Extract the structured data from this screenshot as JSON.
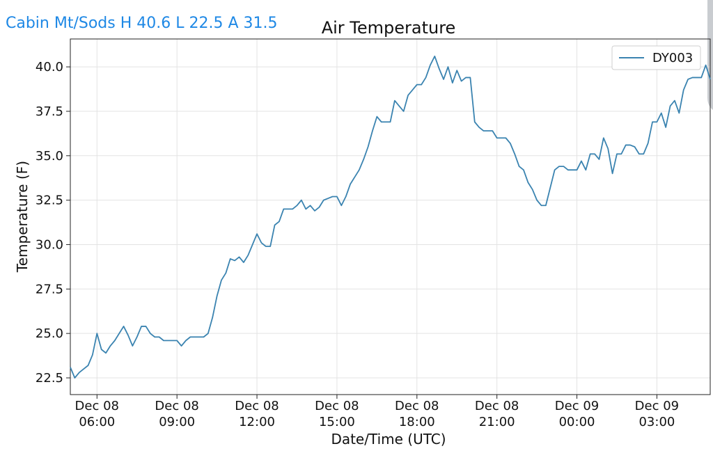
{
  "header": {
    "station": "Cabin Mt/Sods H 40.6 L 22.5 A 31.5"
  },
  "chart_data": {
    "type": "line",
    "title": "Air Temperature",
    "x_label": "Date/Time (UTC)",
    "y_label": "Temperature (F)",
    "x": [
      "Dec 08 05:00",
      "Dec 08 05:10",
      "Dec 08 05:20",
      "Dec 08 05:30",
      "Dec 08 05:40",
      "Dec 08 05:50",
      "Dec 08 06:00",
      "Dec 08 06:10",
      "Dec 08 06:20",
      "Dec 08 06:30",
      "Dec 08 06:40",
      "Dec 08 06:50",
      "Dec 08 07:00",
      "Dec 08 07:10",
      "Dec 08 07:20",
      "Dec 08 07:30",
      "Dec 08 07:40",
      "Dec 08 07:50",
      "Dec 08 08:00",
      "Dec 08 08:10",
      "Dec 08 08:20",
      "Dec 08 08:30",
      "Dec 08 08:40",
      "Dec 08 08:50",
      "Dec 08 09:00",
      "Dec 08 09:10",
      "Dec 08 09:20",
      "Dec 08 09:30",
      "Dec 08 09:40",
      "Dec 08 09:50",
      "Dec 08 10:00",
      "Dec 08 10:10",
      "Dec 08 10:20",
      "Dec 08 10:30",
      "Dec 08 10:40",
      "Dec 08 10:50",
      "Dec 08 11:00",
      "Dec 08 11:10",
      "Dec 08 11:20",
      "Dec 08 11:30",
      "Dec 08 11:40",
      "Dec 08 11:50",
      "Dec 08 12:00",
      "Dec 08 12:10",
      "Dec 08 12:20",
      "Dec 08 12:30",
      "Dec 08 12:40",
      "Dec 08 12:50",
      "Dec 08 13:00",
      "Dec 08 13:10",
      "Dec 08 13:20",
      "Dec 08 13:30",
      "Dec 08 13:40",
      "Dec 08 13:50",
      "Dec 08 14:00",
      "Dec 08 14:10",
      "Dec 08 14:20",
      "Dec 08 14:30",
      "Dec 08 14:40",
      "Dec 08 14:50",
      "Dec 08 15:00",
      "Dec 08 15:10",
      "Dec 08 15:20",
      "Dec 08 15:30",
      "Dec 08 15:40",
      "Dec 08 15:50",
      "Dec 08 16:00",
      "Dec 08 16:10",
      "Dec 08 16:20",
      "Dec 08 16:30",
      "Dec 08 16:40",
      "Dec 08 16:50",
      "Dec 08 17:00",
      "Dec 08 17:10",
      "Dec 08 17:20",
      "Dec 08 17:30",
      "Dec 08 17:40",
      "Dec 08 17:50",
      "Dec 08 18:00",
      "Dec 08 18:10",
      "Dec 08 18:20",
      "Dec 08 18:30",
      "Dec 08 18:40",
      "Dec 08 18:50",
      "Dec 08 19:00",
      "Dec 08 19:10",
      "Dec 08 19:20",
      "Dec 08 19:30",
      "Dec 08 19:40",
      "Dec 08 19:50",
      "Dec 08 20:00",
      "Dec 08 20:10",
      "Dec 08 20:20",
      "Dec 08 20:30",
      "Dec 08 20:40",
      "Dec 08 20:50",
      "Dec 08 21:00",
      "Dec 08 21:10",
      "Dec 08 21:20",
      "Dec 08 21:30",
      "Dec 08 21:40",
      "Dec 08 21:50",
      "Dec 08 22:00",
      "Dec 08 22:10",
      "Dec 08 22:20",
      "Dec 08 22:30",
      "Dec 08 22:40",
      "Dec 08 22:50",
      "Dec 08 23:00",
      "Dec 08 23:10",
      "Dec 08 23:20",
      "Dec 08 23:30",
      "Dec 08 23:40",
      "Dec 08 23:50",
      "Dec 09 00:00",
      "Dec 09 00:10",
      "Dec 09 00:20",
      "Dec 09 00:30",
      "Dec 09 00:40",
      "Dec 09 00:50",
      "Dec 09 01:00",
      "Dec 09 01:10",
      "Dec 09 01:20",
      "Dec 09 01:30",
      "Dec 09 01:40",
      "Dec 09 01:50",
      "Dec 09 02:00",
      "Dec 09 02:10",
      "Dec 09 02:20",
      "Dec 09 02:30",
      "Dec 09 02:40",
      "Dec 09 02:50",
      "Dec 09 03:00",
      "Dec 09 03:10",
      "Dec 09 03:20",
      "Dec 09 03:30",
      "Dec 09 03:40",
      "Dec 09 03:50",
      "Dec 09 04:00",
      "Dec 09 04:10",
      "Dec 09 04:20",
      "Dec 09 04:30",
      "Dec 09 04:40",
      "Dec 09 04:50",
      "Dec 09 05:00"
    ],
    "series": [
      {
        "name": "DY003",
        "color": "#3a83b0",
        "values": [
          23.1,
          22.5,
          22.8,
          23.0,
          23.2,
          23.8,
          25.0,
          24.1,
          23.9,
          24.3,
          24.6,
          25.0,
          25.4,
          24.9,
          24.3,
          24.8,
          25.4,
          25.4,
          25.0,
          24.8,
          24.8,
          24.6,
          24.6,
          24.6,
          24.6,
          24.3,
          24.6,
          24.8,
          24.8,
          24.8,
          24.8,
          25.0,
          25.9,
          27.1,
          28.0,
          28.4,
          29.2,
          29.1,
          29.3,
          29.0,
          29.4,
          30.0,
          30.6,
          30.1,
          29.9,
          29.9,
          31.1,
          31.3,
          32.0,
          32.0,
          32.0,
          32.2,
          32.5,
          32.0,
          32.2,
          31.9,
          32.1,
          32.5,
          32.6,
          32.7,
          32.7,
          32.2,
          32.7,
          33.4,
          33.8,
          34.2,
          34.8,
          35.5,
          36.4,
          37.2,
          36.9,
          36.9,
          36.9,
          38.1,
          37.8,
          37.5,
          38.4,
          38.7,
          39.0,
          39.0,
          39.4,
          40.1,
          40.6,
          39.9,
          39.3,
          40.0,
          39.1,
          39.8,
          39.2,
          39.4,
          39.4,
          36.9,
          36.6,
          36.4,
          36.4,
          36.4,
          36.0,
          36.0,
          36.0,
          35.7,
          35.1,
          34.4,
          34.2,
          33.5,
          33.1,
          32.5,
          32.2,
          32.2,
          33.2,
          34.2,
          34.4,
          34.4,
          34.2,
          34.2,
          34.2,
          34.7,
          34.2,
          35.1,
          35.1,
          34.8,
          36.0,
          35.4,
          34.0,
          35.1,
          35.1,
          35.6,
          35.6,
          35.5,
          35.1,
          35.1,
          35.7,
          36.9,
          36.9,
          37.4,
          36.6,
          37.8,
          38.1,
          37.4,
          38.7,
          39.3,
          39.4,
          39.4,
          39.4,
          40.1,
          39.3
        ]
      }
    ],
    "xlim": [
      "Dec 08 05:00",
      "Dec 09 05:00"
    ],
    "xticks": [
      {
        "value": "Dec 08 06:00",
        "label": [
          "Dec 08",
          "06:00"
        ]
      },
      {
        "value": "Dec 08 09:00",
        "label": [
          "Dec 08",
          "09:00"
        ]
      },
      {
        "value": "Dec 08 12:00",
        "label": [
          "Dec 08",
          "12:00"
        ]
      },
      {
        "value": "Dec 08 15:00",
        "label": [
          "Dec 08",
          "15:00"
        ]
      },
      {
        "value": "Dec 08 18:00",
        "label": [
          "Dec 08",
          "18:00"
        ]
      },
      {
        "value": "Dec 08 21:00",
        "label": [
          "Dec 08",
          "21:00"
        ]
      },
      {
        "value": "Dec 09 00:00",
        "label": [
          "Dec 09",
          "00:00"
        ]
      },
      {
        "value": "Dec 09 03:00",
        "label": [
          "Dec 09",
          "03:00"
        ]
      }
    ],
    "ylim": [
      21.56,
      41.57
    ],
    "yticks": [
      22.5,
      {
        "value": 25,
        "label": "25.0"
      },
      27.5,
      {
        "value": 30,
        "label": "30.0"
      },
      32.5,
      {
        "value": 35,
        "label": "35.0"
      },
      37.5,
      {
        "value": 40,
        "label": "40.0"
      }
    ],
    "grid": true,
    "legend": "upper right"
  }
}
